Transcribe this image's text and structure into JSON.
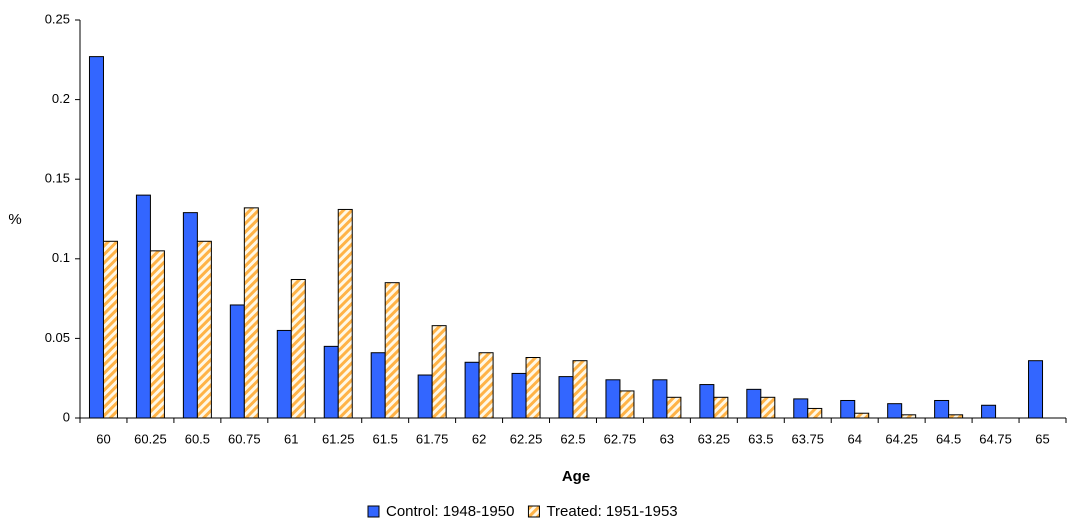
{
  "chart_data": {
    "type": "bar",
    "x_label": "Age",
    "y_label": "%",
    "categories": [
      "60",
      "60.25",
      "60.5",
      "60.75",
      "61",
      "61.25",
      "61.5",
      "61.75",
      "62",
      "62.25",
      "62.5",
      "62.75",
      "63",
      "63.25",
      "63.5",
      "63.75",
      "64",
      "64.25",
      "64.5",
      "64.75",
      "65"
    ],
    "series": [
      {
        "name": "Control: 1948-1950",
        "color": "#3366ff",
        "values": [
          0.227,
          0.14,
          0.129,
          0.071,
          0.055,
          0.045,
          0.041,
          0.027,
          0.035,
          0.028,
          0.026,
          0.024,
          0.024,
          0.021,
          0.018,
          0.012,
          0.011,
          0.009,
          0.011,
          0.008,
          0.036
        ]
      },
      {
        "name": "Treated: 1951-1953",
        "color": "#ffb347",
        "hatch": true,
        "values": [
          0.111,
          0.105,
          0.111,
          0.132,
          0.087,
          0.131,
          0.085,
          0.058,
          0.041,
          0.038,
          0.036,
          0.017,
          0.013,
          0.013,
          0.013,
          0.006,
          0.003,
          0.002,
          0.002,
          0,
          0
        ]
      }
    ],
    "ylim": [
      0,
      0.25
    ],
    "yticks": [
      0,
      0.05,
      0.1,
      0.15,
      0.2,
      0.25
    ],
    "grid": false,
    "legend": "bottom"
  }
}
